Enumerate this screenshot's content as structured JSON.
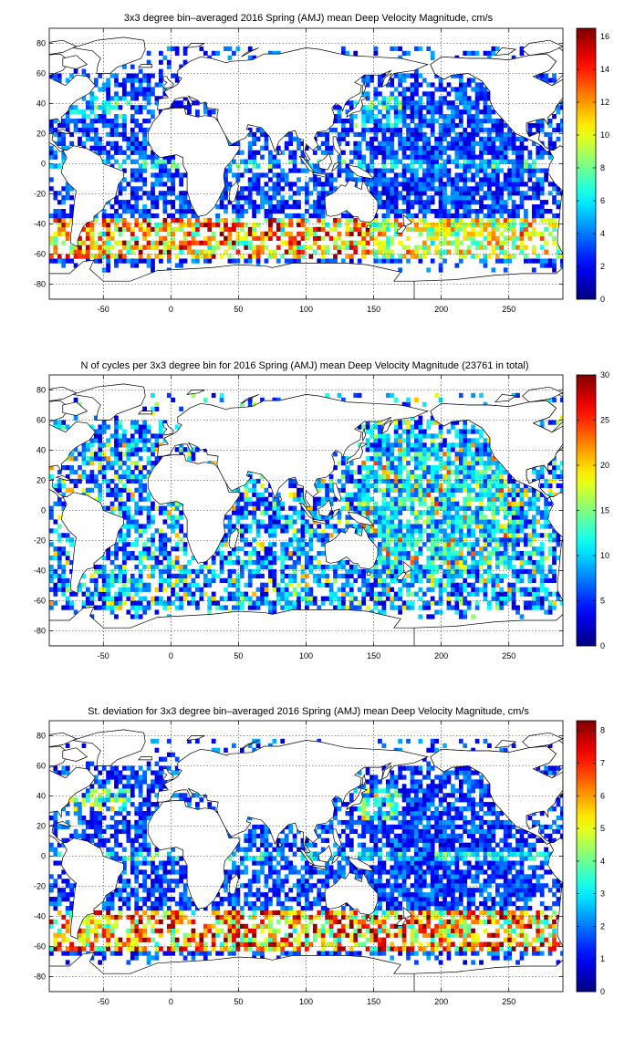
{
  "chart_data": [
    {
      "type": "heatmap",
      "title": "3x3 degree bin–averaged 2016 Spring (AMJ) mean Deep Velocity Magnitude, cm/s",
      "xlim": [
        -90,
        290
      ],
      "ylim": [
        -90,
        90
      ],
      "xticks": [
        "-50",
        "0",
        "50",
        "100",
        "150",
        "200",
        "250"
      ],
      "xtick_values": [
        -50,
        0,
        50,
        100,
        150,
        200,
        250
      ],
      "yticks": [
        "80",
        "60",
        "40",
        "20",
        "0",
        "-20",
        "-40",
        "-60",
        "-80"
      ],
      "ytick_values": [
        80,
        60,
        40,
        20,
        0,
        -20,
        -40,
        -60,
        -80
      ],
      "colorbar": {
        "min": 0,
        "max": 16.5,
        "ticks": [
          "0",
          "2",
          "4",
          "6",
          "8",
          "10",
          "12",
          "14",
          "16"
        ],
        "tick_values": [
          0,
          2,
          4,
          6,
          8,
          10,
          12,
          14,
          16
        ]
      },
      "colormap": "jet",
      "grid": true,
      "bin_size_deg": 3,
      "field": "mean"
    },
    {
      "type": "heatmap",
      "title": "N of cycles per 3x3 degree bin for 2016 Spring (AMJ) mean Deep Velocity Magnitude (23761 in total)",
      "xlim": [
        -90,
        290
      ],
      "ylim": [
        -90,
        90
      ],
      "xticks": [
        "-50",
        "0",
        "50",
        "100",
        "150",
        "200",
        "250"
      ],
      "xtick_values": [
        -50,
        0,
        50,
        100,
        150,
        200,
        250
      ],
      "yticks": [
        "80",
        "60",
        "40",
        "20",
        "0",
        "-20",
        "-40",
        "-60",
        "-80"
      ],
      "ytick_values": [
        80,
        60,
        40,
        20,
        0,
        -20,
        -40,
        -60,
        -80
      ],
      "colorbar": {
        "min": 0,
        "max": 30,
        "ticks": [
          "0",
          "5",
          "10",
          "15",
          "20",
          "25",
          "30"
        ],
        "tick_values": [
          0,
          5,
          10,
          15,
          20,
          25,
          30
        ]
      },
      "colormap": "jet",
      "grid": true,
      "bin_size_deg": 3,
      "field": "count",
      "total_cycles": 23761
    },
    {
      "type": "heatmap",
      "title": "St. deviation for 3x3 degree bin–averaged 2016 Spring (AMJ) mean Deep Velocity Magnitude, cm/s",
      "xlim": [
        -90,
        290
      ],
      "ylim": [
        -90,
        90
      ],
      "xticks": [
        "-50",
        "0",
        "50",
        "100",
        "150",
        "200",
        "250"
      ],
      "xtick_values": [
        -50,
        0,
        50,
        100,
        150,
        200,
        250
      ],
      "yticks": [
        "80",
        "60",
        "40",
        "20",
        "0",
        "-20",
        "-40",
        "-60",
        "-80"
      ],
      "ytick_values": [
        80,
        60,
        40,
        20,
        0,
        -20,
        -40,
        -60,
        -80
      ],
      "colorbar": {
        "min": 0,
        "max": 8.3,
        "ticks": [
          "0",
          "1",
          "2",
          "3",
          "4",
          "5",
          "6",
          "7",
          "8"
        ],
        "tick_values": [
          0,
          1,
          2,
          3,
          4,
          5,
          6,
          7,
          8
        ]
      },
      "colormap": "jet",
      "grid": true,
      "bin_size_deg": 3,
      "field": "std"
    }
  ]
}
